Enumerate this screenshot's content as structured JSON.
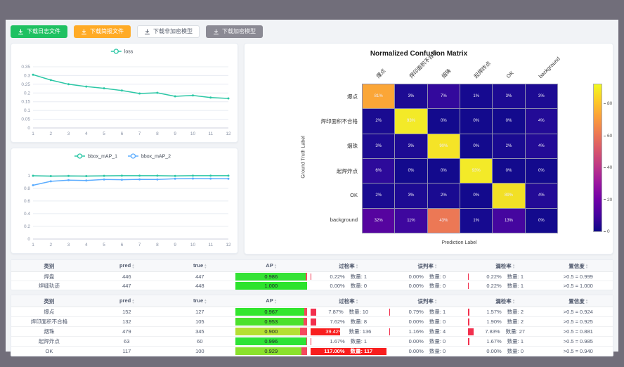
{
  "colors": {
    "teal": "#2bc7a5",
    "blue": "#5cadff",
    "rate_bar": "#f2304e",
    "rate_bar_strong": "#f81e1e",
    "ap_track_rest": "#f5485e",
    "grid_line": "#e8ecf2"
  },
  "toolbar": {
    "buttons": [
      {
        "label": "下载日志文件",
        "style": "green"
      },
      {
        "label": "下载简报文件",
        "style": "orange"
      },
      {
        "label": "下载非加密模型",
        "style": "white"
      },
      {
        "label": "下载加密模型",
        "style": "gray"
      }
    ]
  },
  "chart_data": [
    {
      "type": "line",
      "title": "",
      "x": [
        "1",
        "2",
        "3",
        "4",
        "5",
        "6",
        "7",
        "8",
        "9",
        "10",
        "11",
        "12"
      ],
      "series": [
        {
          "name": "loss",
          "color": "#2bc7a5",
          "values": [
            0.305,
            0.274,
            0.25,
            0.237,
            0.227,
            0.214,
            0.197,
            0.201,
            0.181,
            0.186,
            0.174,
            0.169
          ]
        }
      ],
      "ylim": [
        0,
        0.37
      ],
      "yticks": [
        0,
        0.05,
        0.1,
        0.15,
        0.2,
        0.25,
        0.3,
        0.35
      ],
      "legend_position": "top",
      "grid": true
    },
    {
      "type": "line",
      "title": "",
      "x": [
        "1",
        "2",
        "3",
        "4",
        "5",
        "6",
        "7",
        "8",
        "9",
        "10",
        "11",
        "12"
      ],
      "series": [
        {
          "name": "bbox_mAP_1",
          "color": "#2bc7a5",
          "values": [
            0.998,
            0.992,
            0.996,
            0.992,
            0.997,
            0.999,
            0.999,
            0.999,
            0.996,
            0.999,
            0.999,
            0.999
          ]
        },
        {
          "name": "bbox_mAP_2",
          "color": "#5cadff",
          "values": [
            0.848,
            0.91,
            0.928,
            0.924,
            0.94,
            0.936,
            0.941,
            0.94,
            0.95,
            0.954,
            0.953,
            0.95
          ]
        }
      ],
      "ylim": [
        0,
        1.12
      ],
      "yticks": [
        0,
        0.2,
        0.4,
        0.6,
        0.8,
        1
      ],
      "legend_position": "top",
      "grid": true
    },
    {
      "type": "heatmap",
      "title": "Normalized Confusion Matrix",
      "xlabel": "Prediction Label",
      "ylabel": "Ground Truth Label",
      "labels": [
        "爆点",
        "焊印面积不合格",
        "烟珠",
        "起焊炸点",
        "OK",
        "background"
      ],
      "rows": [
        [
          {
            "v": "81%",
            "c": "#fba637"
          },
          {
            "v": "3%",
            "c": "#1d0b93"
          },
          {
            "v": "7%",
            "c": "#33099c"
          },
          {
            "v": "1%",
            "c": "#160a90"
          },
          {
            "v": "3%",
            "c": "#1d0b93"
          },
          {
            "v": "3%",
            "c": "#1d0b93"
          }
        ],
        [
          {
            "v": "2%",
            "c": "#1a0b91"
          },
          {
            "v": "93%",
            "c": "#f3ea28"
          },
          {
            "v": "0%",
            "c": "#130a8d"
          },
          {
            "v": "0%",
            "c": "#130a8d"
          },
          {
            "v": "0%",
            "c": "#130a8d"
          },
          {
            "v": "4%",
            "c": "#230b96"
          }
        ],
        [
          {
            "v": "3%",
            "c": "#1d0b93"
          },
          {
            "v": "3%",
            "c": "#1d0b93"
          },
          {
            "v": "90%",
            "c": "#f5e427"
          },
          {
            "v": "0%",
            "c": "#130a8d"
          },
          {
            "v": "2%",
            "c": "#1a0b91"
          },
          {
            "v": "4%",
            "c": "#230b96"
          }
        ],
        [
          {
            "v": "6%",
            "c": "#2d0a9a"
          },
          {
            "v": "0%",
            "c": "#130a8d"
          },
          {
            "v": "0%",
            "c": "#130a8d"
          },
          {
            "v": "93%",
            "c": "#f3ea28"
          },
          {
            "v": "0%",
            "c": "#130a8d"
          },
          {
            "v": "0%",
            "c": "#130a8d"
          }
        ],
        [
          {
            "v": "2%",
            "c": "#1a0b91"
          },
          {
            "v": "3%",
            "c": "#1d0b93"
          },
          {
            "v": "2%",
            "c": "#1a0b91"
          },
          {
            "v": "0%",
            "c": "#130a8d"
          },
          {
            "v": "89%",
            "c": "#f2e026"
          },
          {
            "v": "4%",
            "c": "#230b96"
          }
        ],
        [
          {
            "v": "32%",
            "c": "#56049f"
          },
          {
            "v": "11%",
            "c": "#3e079e"
          },
          {
            "v": "43%",
            "c": "#ec7855"
          },
          {
            "v": "1%",
            "c": "#160a90"
          },
          {
            "v": "13%",
            "c": "#45069f"
          },
          {
            "v": "0%",
            "c": "#130a8d"
          }
        ]
      ],
      "colorbar": {
        "ticks": [
          0,
          20,
          40,
          60,
          80
        ],
        "vmax": 93,
        "stops": [
          "#0d0887",
          "#46039f",
          "#7201a8",
          "#9c179e",
          "#bd3786",
          "#d8576b",
          "#ed7953",
          "#fb9f3a",
          "#fdca26",
          "#f0f921"
        ]
      }
    }
  ],
  "tables": [
    {
      "headers": {
        "cls": "类别",
        "pred": "pred",
        "true": "true",
        "ap": "AP",
        "over": "过检率",
        "mis": "误判率",
        "miss": "漏检率",
        "conf": "置信度"
      },
      "rows": [
        {
          "cls": "焊盘",
          "pred": "446",
          "true": "447",
          "ap": {
            "val": "0.986",
            "pct": 98.6,
            "color": "#35e335"
          },
          "over": {
            "pct": "0.22%",
            "cnt": "数量: 1",
            "bar": 0.22
          },
          "mis": {
            "pct": "0.00%",
            "cnt": "数量: 0",
            "bar": 0
          },
          "miss": {
            "pct": "0.22%",
            "cnt": "数量: 1",
            "bar": 0.22
          },
          "conf": ">0.5 = 0.999"
        },
        {
          "cls": "焊缝轨迹",
          "pred": "447",
          "true": "448",
          "ap": {
            "val": "1.000",
            "pct": 100,
            "color": "#2ce32c"
          },
          "over": {
            "pct": "0.00%",
            "cnt": "数量: 0",
            "bar": 0
          },
          "mis": {
            "pct": "0.00%",
            "cnt": "数量: 0",
            "bar": 0
          },
          "miss": {
            "pct": "0.22%",
            "cnt": "数量: 1",
            "bar": 0.22
          },
          "conf": ">0.5 = 1.000"
        }
      ]
    },
    {
      "headers": {
        "cls": "类别",
        "pred": "pred",
        "true": "true",
        "ap": "AP",
        "over": "过检率",
        "mis": "误判率",
        "miss": "漏检率",
        "conf": "置信度"
      },
      "rows": [
        {
          "cls": "爆点",
          "pred": "152",
          "true": "127",
          "ap": {
            "val": "0.967",
            "pct": 96.7,
            "color": "#33e62e"
          },
          "over": {
            "pct": "7.87%",
            "cnt": "数量: 10",
            "bar": 7.87
          },
          "mis": {
            "pct": "0.79%",
            "cnt": "数量: 1",
            "bar": 0.79
          },
          "miss": {
            "pct": "1.57%",
            "cnt": "数量: 2",
            "bar": 1.57
          },
          "conf": ">0.5 = 0.924"
        },
        {
          "cls": "焊印面积不合格",
          "pred": "132",
          "true": "105",
          "ap": {
            "val": "0.953",
            "pct": 95.3,
            "color": "#4be12c"
          },
          "over": {
            "pct": "7.62%",
            "cnt": "数量: 8",
            "bar": 7.62
          },
          "mis": {
            "pct": "0.00%",
            "cnt": "数量: 0",
            "bar": 0
          },
          "miss": {
            "pct": "1.90%",
            "cnt": "数量: 2",
            "bar": 1.9
          },
          "conf": ">0.5 = 0.925"
        },
        {
          "cls": "烟珠",
          "pred": "479",
          "true": "345",
          "ap": {
            "val": "0.900",
            "pct": 90,
            "color": "#b5df33"
          },
          "over": {
            "pct": "39.42%",
            "cnt": "数量: 136",
            "bar": 39.42
          },
          "mis": {
            "pct": "1.16%",
            "cnt": "数量: 4",
            "bar": 1.16
          },
          "miss": {
            "pct": "7.83%",
            "cnt": "数量: 27",
            "bar": 7.83
          },
          "conf": ">0.5 = 0.881"
        },
        {
          "cls": "起焊炸点",
          "pred": "63",
          "true": "60",
          "ap": {
            "val": "0.996",
            "pct": 99.6,
            "color": "#2ee336"
          },
          "over": {
            "pct": "1.67%",
            "cnt": "数量: 1",
            "bar": 1.67
          },
          "mis": {
            "pct": "0.00%",
            "cnt": "数量: 0",
            "bar": 0
          },
          "miss": {
            "pct": "1.67%",
            "cnt": "数量: 1",
            "bar": 1.67
          },
          "conf": ">0.5 = 0.985"
        },
        {
          "cls": "OK",
          "pred": "117",
          "true": "100",
          "ap": {
            "val": "0.929",
            "pct": 92.9,
            "color": "#8ae12c"
          },
          "over": {
            "pct": "117.00%",
            "cnt": "数量: 117",
            "bar": 117
          },
          "mis": {
            "pct": "0.00%",
            "cnt": "数量: 0",
            "bar": 0
          },
          "miss": {
            "pct": "0.00%",
            "cnt": "数量: 0",
            "bar": 0
          },
          "conf": ">0.5 = 0.940"
        }
      ]
    }
  ]
}
